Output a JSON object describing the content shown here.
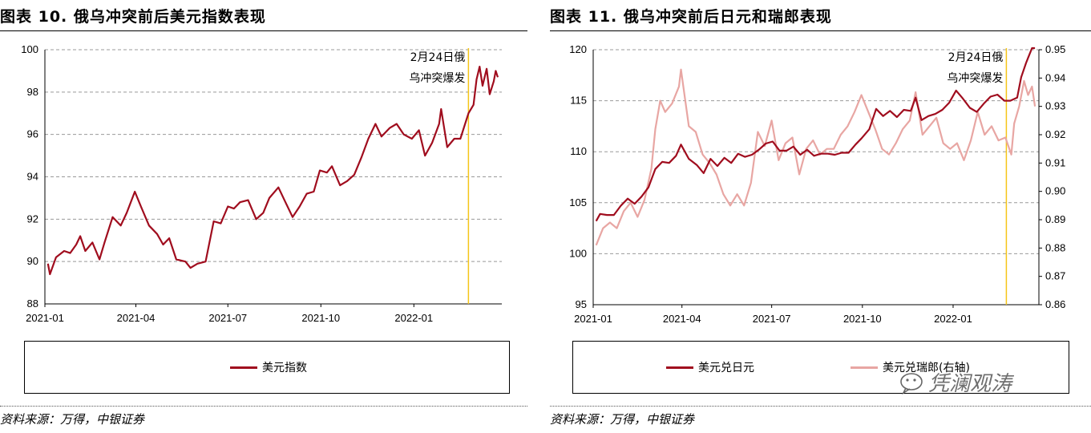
{
  "left_panel": {
    "title": "图表 10. 俄乌冲突前后美元指数表现",
    "source": "资料来源：万得，中银证券",
    "annotation_line1": "2月24日俄",
    "annotation_line2": "乌冲突爆发",
    "legend": [
      "美元指数"
    ]
  },
  "right_panel": {
    "title": "图表 11. 俄乌冲突前后日元和瑞郎表现",
    "source": "资料来源：万得，中银证券",
    "annotation_line1": "2月24日俄",
    "annotation_line2": "乌冲突爆发",
    "legend": [
      "美元兑日元",
      "美元兑瑞郎(右轴)"
    ],
    "watermark": "凭澜观涛"
  },
  "chart_data": [
    {
      "type": "line",
      "x_ticks": [
        "2021-01",
        "2021-04",
        "2021-07",
        "2021-10",
        "2022-01"
      ],
      "y_ticks": [
        "88",
        "90",
        "92",
        "94",
        "96",
        "98",
        "100"
      ],
      "ylim": [
        88,
        100
      ],
      "grid": "horizontal-dashed",
      "legend_position": "bottom",
      "event_marker": {
        "date": "2022-02-24",
        "label": "2月24日俄乌冲突爆发",
        "color": "#f5c518"
      },
      "series": [
        {
          "name": "美元指数",
          "color": "#a00d1e",
          "points": [
            [
              "2021-01-04",
              89.9
            ],
            [
              "2021-01-06",
              89.4
            ],
            [
              "2021-01-12",
              90.2
            ],
            [
              "2021-01-20",
              90.5
            ],
            [
              "2021-01-26",
              90.4
            ],
            [
              "2021-02-01",
              90.8
            ],
            [
              "2021-02-05",
              91.2
            ],
            [
              "2021-02-10",
              90.5
            ],
            [
              "2021-02-17",
              90.9
            ],
            [
              "2021-02-24",
              90.1
            ],
            [
              "2021-03-01",
              90.9
            ],
            [
              "2021-03-09",
              92.1
            ],
            [
              "2021-03-17",
              91.7
            ],
            [
              "2021-03-23",
              92.3
            ],
            [
              "2021-03-31",
              93.3
            ],
            [
              "2021-04-06",
              92.6
            ],
            [
              "2021-04-14",
              91.7
            ],
            [
              "2021-04-22",
              91.3
            ],
            [
              "2021-04-28",
              90.8
            ],
            [
              "2021-05-04",
              91.1
            ],
            [
              "2021-05-11",
              90.1
            ],
            [
              "2021-05-20",
              90.0
            ],
            [
              "2021-05-25",
              89.7
            ],
            [
              "2021-06-01",
              89.9
            ],
            [
              "2021-06-09",
              90.0
            ],
            [
              "2021-06-17",
              91.9
            ],
            [
              "2021-06-24",
              91.8
            ],
            [
              "2021-07-01",
              92.6
            ],
            [
              "2021-07-07",
              92.5
            ],
            [
              "2021-07-13",
              92.8
            ],
            [
              "2021-07-21",
              92.9
            ],
            [
              "2021-07-29",
              92.0
            ],
            [
              "2021-08-05",
              92.3
            ],
            [
              "2021-08-11",
              93.0
            ],
            [
              "2021-08-20",
              93.5
            ],
            [
              "2021-08-27",
              92.8
            ],
            [
              "2021-09-03",
              92.1
            ],
            [
              "2021-09-10",
              92.6
            ],
            [
              "2021-09-17",
              93.2
            ],
            [
              "2021-09-24",
              93.3
            ],
            [
              "2021-09-30",
              94.3
            ],
            [
              "2021-10-07",
              94.2
            ],
            [
              "2021-10-12",
              94.5
            ],
            [
              "2021-10-20",
              93.6
            ],
            [
              "2021-10-27",
              93.8
            ],
            [
              "2021-11-03",
              94.1
            ],
            [
              "2021-11-10",
              94.9
            ],
            [
              "2021-11-17",
              95.8
            ],
            [
              "2021-11-24",
              96.5
            ],
            [
              "2021-11-30",
              95.9
            ],
            [
              "2021-12-08",
              96.3
            ],
            [
              "2021-12-15",
              96.5
            ],
            [
              "2021-12-22",
              96.0
            ],
            [
              "2021-12-30",
              95.8
            ],
            [
              "2022-01-06",
              96.2
            ],
            [
              "2022-01-12",
              95.0
            ],
            [
              "2022-01-19",
              95.6
            ],
            [
              "2022-01-26",
              96.5
            ],
            [
              "2022-01-28",
              97.2
            ],
            [
              "2022-02-03",
              95.4
            ],
            [
              "2022-02-10",
              95.8
            ],
            [
              "2022-02-16",
              95.8
            ],
            [
              "2022-02-24",
              97.0
            ],
            [
              "2022-03-01",
              97.4
            ],
            [
              "2022-03-04",
              98.6
            ],
            [
              "2022-03-07",
              99.2
            ],
            [
              "2022-03-10",
              98.3
            ],
            [
              "2022-03-14",
              99.1
            ],
            [
              "2022-03-17",
              97.9
            ],
            [
              "2022-03-21",
              98.5
            ],
            [
              "2022-03-23",
              99.0
            ],
            [
              "2022-03-25",
              98.7
            ]
          ]
        }
      ]
    },
    {
      "type": "line",
      "x_ticks": [
        "2021-01",
        "2021-04",
        "2021-07",
        "2021-10",
        "2022-01"
      ],
      "y_ticks_left": [
        "95",
        "100",
        "105",
        "110",
        "115",
        "120"
      ],
      "y_ticks_right": [
        "0.86",
        "0.87",
        "0.88",
        "0.89",
        "0.90",
        "0.91",
        "0.92",
        "0.93",
        "0.94",
        "0.95"
      ],
      "ylim_left": [
        95,
        120
      ],
      "ylim_right": [
        0.86,
        0.95
      ],
      "grid": "horizontal-dashed",
      "legend_position": "bottom",
      "event_marker": {
        "date": "2022-02-24",
        "label": "2月24日俄乌冲突爆发",
        "color": "#f5c518"
      },
      "series": [
        {
          "name": "美元兑日元",
          "axis": "left",
          "color": "#a00d1e",
          "points": [
            [
              "2021-01-04",
              103.2
            ],
            [
              "2021-01-08",
              103.9
            ],
            [
              "2021-01-15",
              103.8
            ],
            [
              "2021-01-22",
              103.8
            ],
            [
              "2021-01-29",
              104.7
            ],
            [
              "2021-02-05",
              105.4
            ],
            [
              "2021-02-12",
              104.9
            ],
            [
              "2021-02-19",
              105.6
            ],
            [
              "2021-02-26",
              106.5
            ],
            [
              "2021-03-05",
              108.3
            ],
            [
              "2021-03-12",
              109.0
            ],
            [
              "2021-03-19",
              108.9
            ],
            [
              "2021-03-26",
              109.6
            ],
            [
              "2021-03-31",
              110.7
            ],
            [
              "2021-04-08",
              109.3
            ],
            [
              "2021-04-16",
              108.7
            ],
            [
              "2021-04-23",
              107.9
            ],
            [
              "2021-04-30",
              109.3
            ],
            [
              "2021-05-07",
              108.6
            ],
            [
              "2021-05-14",
              109.4
            ],
            [
              "2021-05-21",
              108.9
            ],
            [
              "2021-05-28",
              109.8
            ],
            [
              "2021-06-04",
              109.5
            ],
            [
              "2021-06-11",
              109.7
            ],
            [
              "2021-06-18",
              110.2
            ],
            [
              "2021-06-25",
              110.8
            ],
            [
              "2021-07-02",
              111.0
            ],
            [
              "2021-07-09",
              110.1
            ],
            [
              "2021-07-16",
              110.1
            ],
            [
              "2021-07-23",
              110.5
            ],
            [
              "2021-07-30",
              109.7
            ],
            [
              "2021-08-06",
              110.2
            ],
            [
              "2021-08-13",
              109.6
            ],
            [
              "2021-08-20",
              109.8
            ],
            [
              "2021-08-27",
              109.8
            ],
            [
              "2021-09-03",
              109.7
            ],
            [
              "2021-09-10",
              109.9
            ],
            [
              "2021-09-17",
              109.9
            ],
            [
              "2021-09-24",
              110.7
            ],
            [
              "2021-09-30",
              111.3
            ],
            [
              "2021-10-08",
              112.2
            ],
            [
              "2021-10-15",
              114.2
            ],
            [
              "2021-10-22",
              113.5
            ],
            [
              "2021-10-29",
              114.0
            ],
            [
              "2021-11-05",
              113.4
            ],
            [
              "2021-11-12",
              114.1
            ],
            [
              "2021-11-19",
              114.0
            ],
            [
              "2021-11-24",
              115.3
            ],
            [
              "2021-11-30",
              113.1
            ],
            [
              "2021-12-07",
              113.5
            ],
            [
              "2021-12-14",
              113.7
            ],
            [
              "2021-12-21",
              114.1
            ],
            [
              "2021-12-28",
              114.8
            ],
            [
              "2022-01-04",
              116.0
            ],
            [
              "2022-01-11",
              115.2
            ],
            [
              "2022-01-18",
              114.3
            ],
            [
              "2022-01-25",
              113.9
            ],
            [
              "2022-02-01",
              114.7
            ],
            [
              "2022-02-08",
              115.4
            ],
            [
              "2022-02-15",
              115.6
            ],
            [
              "2022-02-22",
              115.0
            ],
            [
              "2022-02-28",
              115.0
            ],
            [
              "2022-03-07",
              115.3
            ],
            [
              "2022-03-11",
              117.3
            ],
            [
              "2022-03-16",
              118.7
            ],
            [
              "2022-03-18",
              119.2
            ],
            [
              "2022-03-22",
              120.8
            ],
            [
              "2022-03-25",
              121.9
            ]
          ]
        },
        {
          "name": "美元兑瑞郎(右轴)",
          "axis": "right",
          "color": "#e8a6a3",
          "points": [
            [
              "2021-01-04",
              0.881
            ],
            [
              "2021-01-11",
              0.887
            ],
            [
              "2021-01-18",
              0.889
            ],
            [
              "2021-01-25",
              0.887
            ],
            [
              "2021-02-01",
              0.893
            ],
            [
              "2021-02-08",
              0.896
            ],
            [
              "2021-02-15",
              0.891
            ],
            [
              "2021-02-22",
              0.897
            ],
            [
              "2021-03-01",
              0.908
            ],
            [
              "2021-03-05",
              0.922
            ],
            [
              "2021-03-10",
              0.932
            ],
            [
              "2021-03-15",
              0.928
            ],
            [
              "2021-03-22",
              0.931
            ],
            [
              "2021-03-29",
              0.937
            ],
            [
              "2021-03-31",
              0.943
            ],
            [
              "2021-04-08",
              0.923
            ],
            [
              "2021-04-15",
              0.921
            ],
            [
              "2021-04-22",
              0.913
            ],
            [
              "2021-04-29",
              0.91
            ],
            [
              "2021-05-06",
              0.906
            ],
            [
              "2021-05-13",
              0.899
            ],
            [
              "2021-05-20",
              0.895
            ],
            [
              "2021-05-27",
              0.899
            ],
            [
              "2021-06-03",
              0.895
            ],
            [
              "2021-06-10",
              0.903
            ],
            [
              "2021-06-17",
              0.921
            ],
            [
              "2021-06-24",
              0.916
            ],
            [
              "2021-07-01",
              0.925
            ],
            [
              "2021-07-08",
              0.911
            ],
            [
              "2021-07-15",
              0.917
            ],
            [
              "2021-07-22",
              0.919
            ],
            [
              "2021-07-29",
              0.906
            ],
            [
              "2021-08-05",
              0.915
            ],
            [
              "2021-08-12",
              0.918
            ],
            [
              "2021-08-19",
              0.913
            ],
            [
              "2021-08-26",
              0.915
            ],
            [
              "2021-09-02",
              0.915
            ],
            [
              "2021-09-09",
              0.92
            ],
            [
              "2021-09-16",
              0.923
            ],
            [
              "2021-09-23",
              0.928
            ],
            [
              "2021-09-30",
              0.934
            ],
            [
              "2021-10-07",
              0.928
            ],
            [
              "2021-10-14",
              0.922
            ],
            [
              "2021-10-21",
              0.915
            ],
            [
              "2021-10-28",
              0.913
            ],
            [
              "2021-11-04",
              0.917
            ],
            [
              "2021-11-11",
              0.922
            ],
            [
              "2021-11-18",
              0.925
            ],
            [
              "2021-11-24",
              0.935
            ],
            [
              "2021-12-01",
              0.92
            ],
            [
              "2021-12-08",
              0.923
            ],
            [
              "2021-12-15",
              0.926
            ],
            [
              "2021-12-22",
              0.917
            ],
            [
              "2021-12-29",
              0.915
            ],
            [
              "2022-01-05",
              0.917
            ],
            [
              "2022-01-12",
              0.911
            ],
            [
              "2022-01-19",
              0.918
            ],
            [
              "2022-01-26",
              0.928
            ],
            [
              "2022-02-02",
              0.92
            ],
            [
              "2022-02-09",
              0.923
            ],
            [
              "2022-02-16",
              0.918
            ],
            [
              "2022-02-23",
              0.919
            ],
            [
              "2022-03-01",
              0.913
            ],
            [
              "2022-03-04",
              0.924
            ],
            [
              "2022-03-09",
              0.93
            ],
            [
              "2022-03-14",
              0.939
            ],
            [
              "2022-03-18",
              0.934
            ],
            [
              "2022-03-22",
              0.937
            ],
            [
              "2022-03-25",
              0.93
            ]
          ]
        }
      ]
    }
  ]
}
